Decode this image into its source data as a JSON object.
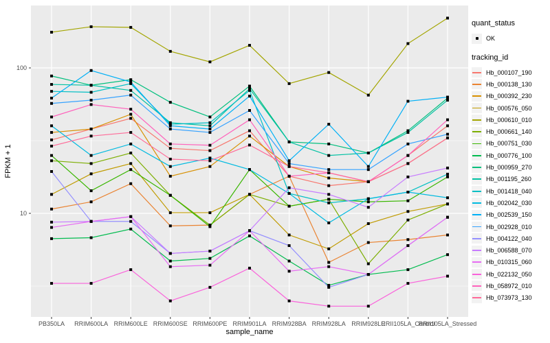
{
  "figure": {
    "bg": "#FFFFFF",
    "panel_bg": "#EBEBEB",
    "grid_color": "#FFFFFF",
    "tick_color": "#333333",
    "tick_label_color": "#4D4D4D",
    "title_color": "#000000",
    "point_color": "#000000",
    "legend_key_bg": "#F2F2F2"
  },
  "axes": {
    "x_title": "sample_name",
    "y_title": "FPKM + 1",
    "y_ticks": [
      {
        "label": "100",
        "value": 100
      },
      {
        "label": "10",
        "value": 10
      }
    ]
  },
  "legend": {
    "quant_title": "quant_status",
    "quant_item": "OK",
    "tracking_title": "tracking_id"
  },
  "chart_data": {
    "type": "line",
    "title": "",
    "xlabel": "sample_name",
    "ylabel": "FPKM + 1",
    "y_scale": "log10",
    "ylim": [
      1.9,
      270
    ],
    "y_major_gridlines": [
      10,
      100
    ],
    "y_minor_gridlines": [
      3.162,
      31.62
    ],
    "grid": true,
    "legend_position": "right",
    "quant_status": "OK",
    "categories": [
      "PB350LA",
      "RRIM600LA",
      "RRIM600LE",
      "RRIM600SE",
      "RRIM600PE",
      "RRIM901LA",
      "RRIM928BA",
      "RRIM928LA",
      "RRIM928LE",
      "RRII105LA_Control",
      "RRII105LA_Stressed"
    ],
    "series": [
      {
        "name": "Hb_000107_190",
        "color": "#F8766D",
        "values": [
          32,
          38,
          45,
          28,
          27,
          37,
          18,
          15.5,
          16.5,
          25,
          40
        ]
      },
      {
        "name": "Hb_000138_130",
        "color": "#EA8331",
        "values": [
          10.7,
          12,
          16,
          8.2,
          8.3,
          13.5,
          18,
          4.6,
          6.3,
          6.6,
          7.1
        ]
      },
      {
        "name": "Hb_000392_230",
        "color": "#D89000",
        "values": [
          36,
          38,
          48,
          18,
          21,
          34,
          21,
          17.5,
          16.5,
          22,
          33
        ]
      },
      {
        "name": "Hb_000576_050",
        "color": "#C09B00",
        "values": [
          13.5,
          18.7,
          22,
          10.1,
          10.1,
          13.5,
          7.1,
          5.7,
          8.5,
          10.3,
          11.6
        ]
      },
      {
        "name": "Hb_000610_010",
        "color": "#A3A500",
        "values": [
          176,
          192,
          190,
          130,
          110,
          143,
          78,
          93,
          65,
          147,
          220
        ]
      },
      {
        "name": "Hb_000661_140",
        "color": "#7CAE00",
        "values": [
          23,
          22,
          26,
          13.3,
          8.3,
          13.5,
          11.2,
          12.5,
          4.5,
          9,
          11.6
        ]
      },
      {
        "name": "Hb_000751_030",
        "color": "#39B600",
        "values": [
          25,
          14.3,
          20,
          13.3,
          8.1,
          20,
          11.2,
          12.5,
          12,
          12.2,
          17.8
        ]
      },
      {
        "name": "Hb_000776_100",
        "color": "#00BB4E",
        "values": [
          6.7,
          6.8,
          7.8,
          4.7,
          4.9,
          7,
          4.7,
          3.2,
          3.8,
          4.1,
          5.2
        ]
      },
      {
        "name": "Hb_000959_270",
        "color": "#00BF7D",
        "values": [
          88,
          76,
          83,
          58,
          46,
          75,
          31,
          30,
          26,
          37,
          62
        ]
      },
      {
        "name": "Hb_001195_260",
        "color": "#00C1A3",
        "values": [
          77,
          76,
          70,
          42,
          40,
          72,
          31,
          25,
          26,
          36,
          60
        ]
      },
      {
        "name": "Hb_001418_040",
        "color": "#00BFC4",
        "values": [
          69,
          68,
          78,
          41,
          42,
          70,
          13.7,
          11.8,
          12.6,
          14,
          18.6
        ]
      },
      {
        "name": "Hb_002042_030",
        "color": "#00BAE0",
        "values": [
          40,
          25,
          30,
          21,
          24,
          20,
          13.7,
          8.6,
          12.6,
          14,
          12.8
        ]
      },
      {
        "name": "Hb_002539_150",
        "color": "#00B0F6",
        "values": [
          62,
          96,
          80,
          40,
          38,
          64,
          23,
          41,
          21,
          59,
          63
        ]
      },
      {
        "name": "Hb_002928_010",
        "color": "#35A2FF",
        "values": [
          57,
          60,
          65,
          38,
          36,
          51,
          22,
          20,
          20,
          30,
          35
        ]
      },
      {
        "name": "Hb_004122_040",
        "color": "#9590FF",
        "values": [
          19.4,
          8.8,
          8.8,
          5.3,
          5.5,
          7.6,
          6,
          3.1,
          3.8,
          6,
          9.4
        ]
      },
      {
        "name": "Hb_006588_070",
        "color": "#C77CFF",
        "values": [
          8.7,
          8.8,
          9.5,
          5.3,
          5.5,
          7.6,
          15,
          13.5,
          11,
          17.8,
          20.5
        ]
      },
      {
        "name": "Hb_010315_060",
        "color": "#E76BF3",
        "values": [
          8,
          8.8,
          9.5,
          4.3,
          4.4,
          7.6,
          4,
          4.3,
          3.8,
          6,
          9.4
        ]
      },
      {
        "name": "Hb_022132_050",
        "color": "#FA62DB",
        "values": [
          3.3,
          3.3,
          4.1,
          2.5,
          3.1,
          4.2,
          2.5,
          2.3,
          2.3,
          3.3,
          3.7
        ]
      },
      {
        "name": "Hb_058972_010",
        "color": "#FF62BC",
        "values": [
          46,
          56,
          52,
          30,
          29.4,
          44,
          18,
          19,
          16.5,
          25,
          44
        ]
      },
      {
        "name": "Hb_073973_130",
        "color": "#FF6A98",
        "values": [
          29,
          34,
          36,
          23.6,
          23,
          29.5,
          21,
          19,
          16.5,
          22,
          33
        ]
      }
    ]
  }
}
